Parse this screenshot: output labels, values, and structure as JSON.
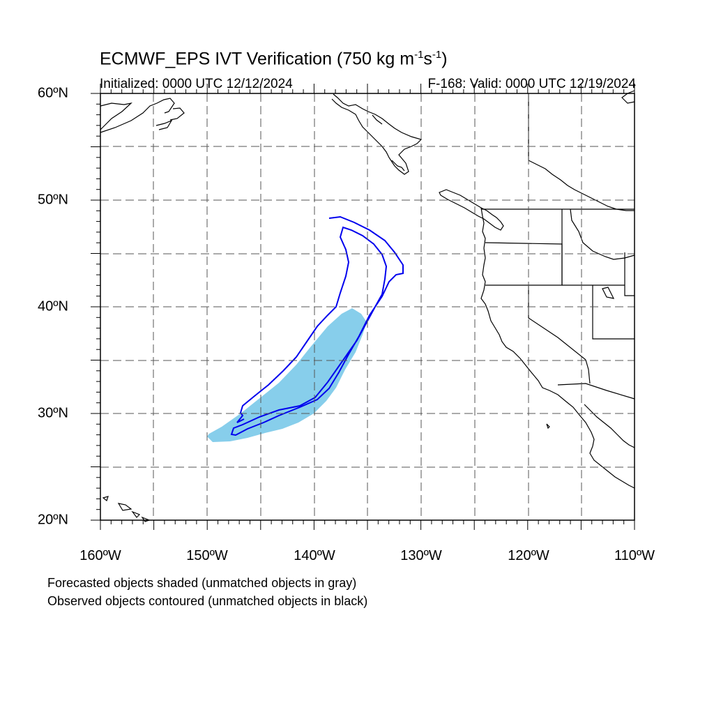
{
  "title": {
    "main": "ECMWF_EPS IVT Verification (750 kg m",
    "sup1": "-1",
    "mid": "s",
    "sup2": "-1",
    "end": ")"
  },
  "subtitle": {
    "initialized": "Initialized: 0000 UTC 12/12/2024",
    "valid": "F-168: Valid: 0000 UTC 12/19/2024"
  },
  "latitude_labels": [
    "60ºN",
    "50ºN",
    "40ºN",
    "30ºN",
    "20ºN"
  ],
  "longitude_labels": [
    "160ºW",
    "150ºW",
    "140ºW",
    "130ºW",
    "120ºW",
    "110ºW"
  ],
  "notes": {
    "forecast": "Forecasted objects shaded (unmatched objects in gray)",
    "observed": "Observed objects contoured (unmatched objects in black)"
  },
  "colors": {
    "forecast_fill": "#87ceeb",
    "observed_contour": "#0000ee",
    "coastline": "#000000",
    "grid": "#555555"
  },
  "map_extent": {
    "lon_min": -160,
    "lon_max": -110,
    "lat_min": 20,
    "lat_max": 60
  }
}
